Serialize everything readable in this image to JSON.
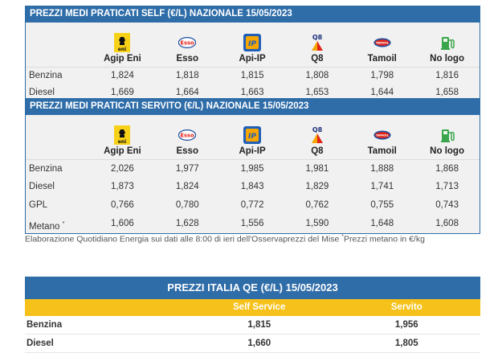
{
  "self": {
    "title": "PREZZI MEDI PRATICATI SELF (€/L) NAZIONALE 15/05/2023",
    "brands": [
      "Agip Eni",
      "Esso",
      "Api-IP",
      "Q8",
      "Tamoil",
      "No logo"
    ],
    "rows": [
      {
        "label": "Benzina",
        "values": [
          "1,824",
          "1,818",
          "1,815",
          "1,808",
          "1,798",
          "1,816"
        ]
      },
      {
        "label": "Diesel",
        "values": [
          "1,669",
          "1,664",
          "1,663",
          "1,653",
          "1,644",
          "1,658"
        ]
      }
    ]
  },
  "servito": {
    "title": "PREZZI MEDI PRATICATI SERVITO (€/L) NAZIONALE 15/05/2023",
    "brands": [
      "Agip Eni",
      "Esso",
      "Api-IP",
      "Q8",
      "Tamoil",
      "No logo"
    ],
    "rows": [
      {
        "label": "Benzina",
        "values": [
          "2,026",
          "1,977",
          "1,985",
          "1,981",
          "1,888",
          "1,868"
        ]
      },
      {
        "label": "Diesel",
        "values": [
          "1,873",
          "1,824",
          "1,843",
          "1,829",
          "1,741",
          "1,713"
        ]
      },
      {
        "label": "GPL",
        "values": [
          "0,766",
          "0,780",
          "0,772",
          "0,762",
          "0,755",
          "0,743"
        ]
      },
      {
        "label": "Metano",
        "marker": "*",
        "values": [
          "1,606",
          "1,628",
          "1,556",
          "1,590",
          "1,648",
          "1,608"
        ]
      }
    ]
  },
  "logos": {
    "eni": {
      "icon": "eni-six-legged-dog-icon",
      "text": "eni"
    },
    "esso": {
      "icon": "esso-oval-icon",
      "text": "Esso"
    },
    "ip": {
      "icon": "ip-logo-icon",
      "text": "IP"
    },
    "q8": {
      "icon": "q8-sails-icon",
      "text": "Q8"
    },
    "tamoil": {
      "icon": "tamoil-oval-icon",
      "text": "TAMOIL"
    },
    "nologo": {
      "icon": "fuel-pump-icon"
    }
  },
  "footnote": {
    "text": "Elaborazione Quotidiano Energia sui dati alle 8:00 di ieri dell'Osservaprezzi del Mise ",
    "marker": "*",
    "text2": "Prezzi metano in €/kg"
  },
  "qe": {
    "title": "PREZZI ITALIA QE (€/L) 15/05/2023",
    "columns": [
      "",
      "Self Service",
      "Servito"
    ],
    "rows": [
      {
        "label": "Benzina",
        "self": "1,815",
        "servito": "1,956"
      },
      {
        "label": "Diesel",
        "self": "1,660",
        "servito": "1,805"
      }
    ]
  },
  "colors": {
    "header_blue": "#2f6da9",
    "qe_yellow": "#f6c11a",
    "row_grey": "#f1f1f1"
  }
}
